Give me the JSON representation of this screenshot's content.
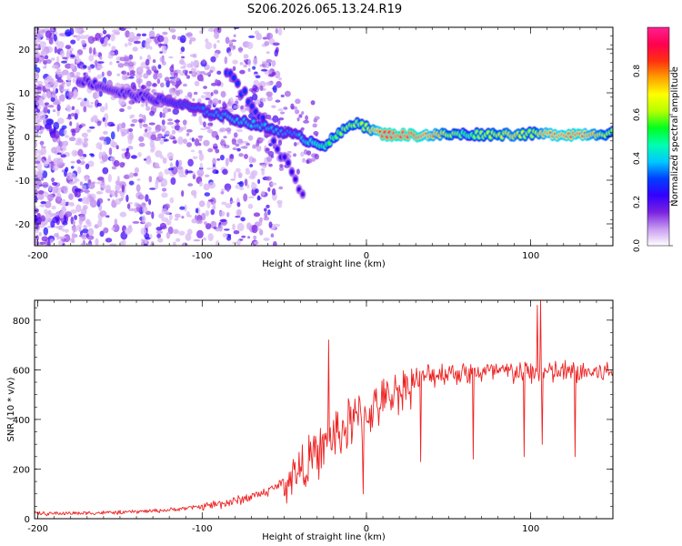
{
  "title": "S206.2026.065.13.24.R19",
  "chart_data": [
    {
      "type": "heatmap",
      "xlabel": "Height of straight line (km)",
      "ylabel": "Frequency (Hz)",
      "xlim": [
        -202,
        150
      ],
      "ylim": [
        -25,
        25
      ],
      "xticks": [
        -200,
        -100,
        0,
        100
      ],
      "yticks": [
        -20,
        -10,
        0,
        10,
        20
      ],
      "colorbar": {
        "label": "Normalized spectral amplitude",
        "range": [
          0.0,
          1.0
        ],
        "ticks": [
          0.0,
          0.2,
          0.4,
          0.6,
          0.8
        ],
        "tick_labels": [
          "0.0",
          "0.2",
          "0.4",
          "0.6",
          "0.8"
        ],
        "colormap": [
          "#ffffff",
          "#c89bf0",
          "#7a22e0",
          "#3300ff",
          "#0040ff",
          "#00c8ff",
          "#00ffb0",
          "#00ff20",
          "#b4ff00",
          "#ffff00",
          "#ffa000",
          "#ff3010",
          "#ff0050",
          "#ff2090"
        ]
      },
      "ridge": {
        "x": [
          -175,
          -165,
          -150,
          -135,
          -120,
          -100,
          -80,
          -60,
          -45,
          -35,
          -25,
          -15,
          -8,
          -5,
          0,
          10,
          30,
          60,
          90,
          100,
          110,
          130,
          150
        ],
        "y": [
          13,
          12,
          10,
          9,
          8,
          6,
          4,
          2,
          0.5,
          -1,
          -2,
          1,
          3,
          3.5,
          2,
          0.5,
          0.3,
          0.5,
          0.5,
          0.6,
          0.5,
          0.5,
          0.8
        ],
        "amplitude": [
          0.25,
          0.25,
          0.25,
          0.25,
          0.3,
          0.35,
          0.4,
          0.4,
          0.35,
          0.45,
          0.55,
          0.6,
          0.65,
          0.6,
          0.65,
          0.95,
          0.95,
          0.55,
          0.75,
          0.6,
          0.85,
          0.9,
          0.6
        ]
      },
      "branch": {
        "x": [
          -85,
          -75,
          -65,
          -55,
          -45,
          -38
        ],
        "y": [
          15,
          10,
          5,
          -2,
          -8,
          -14
        ],
        "amplitude": [
          0.3,
          0.3,
          0.28,
          0.25,
          0.25,
          0.2
        ]
      }
    },
    {
      "type": "line",
      "xlabel": "Height of straight line (km)",
      "ylabel": "SNR (10 * v/v)",
      "xlim": [
        -202,
        150
      ],
      "ylim": [
        0,
        880
      ],
      "xticks": [
        -200,
        -100,
        0,
        100
      ],
      "yticks": [
        0,
        200,
        400,
        600,
        800
      ],
      "color": "#ee2222",
      "trend": {
        "x": [
          -202,
          -150,
          -120,
          -100,
          -80,
          -60,
          -50,
          -40,
          -30,
          -20,
          -10,
          0,
          10,
          20,
          30,
          40,
          50,
          150
        ],
        "y": [
          20,
          25,
          35,
          50,
          70,
          110,
          150,
          200,
          260,
          330,
          380,
          420,
          470,
          520,
          560,
          580,
          590,
          590
        ]
      },
      "spikes": [
        {
          "x": -23,
          "y": 720
        },
        {
          "x": -2,
          "y": 100
        },
        {
          "x": 33,
          "y": 230
        },
        {
          "x": 65,
          "y": 240
        },
        {
          "x": 96,
          "y": 250
        },
        {
          "x": 104,
          "y": 860
        },
        {
          "x": 106,
          "y": 880
        },
        {
          "x": 107,
          "y": 300
        },
        {
          "x": 127,
          "y": 250
        }
      ]
    }
  ]
}
